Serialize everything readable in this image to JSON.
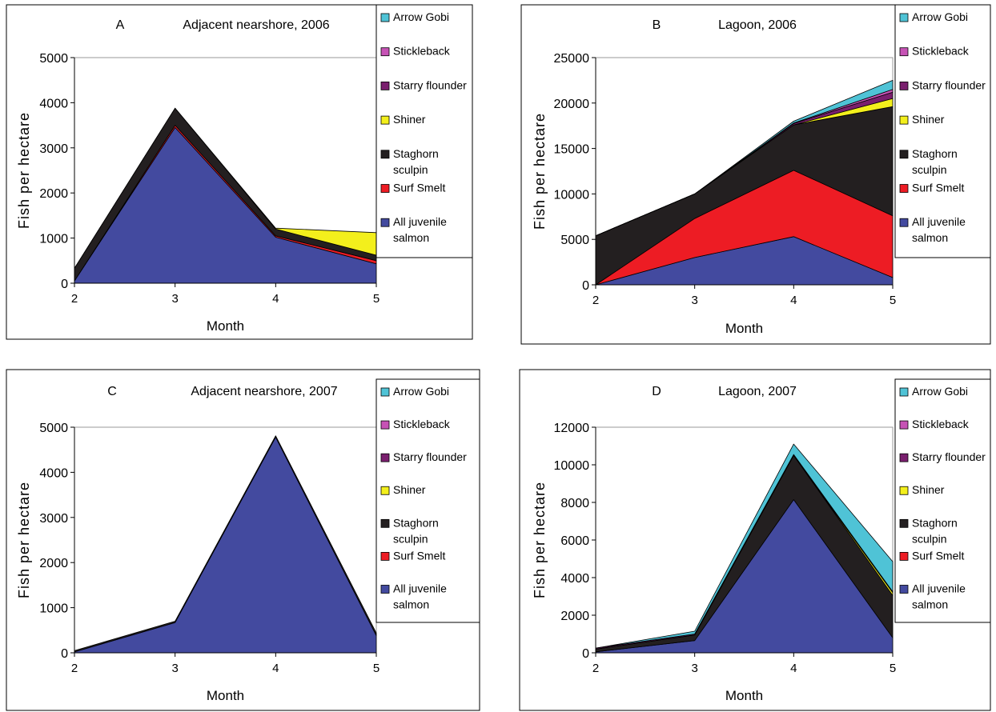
{
  "legend_items": [
    {
      "label_lines": [
        "Arrow Gobi"
      ],
      "color": "#4FC3D6"
    },
    {
      "label_lines": [
        "Stickleback"
      ],
      "color": "#C652B5"
    },
    {
      "label_lines": [
        "Starry flounder"
      ],
      "color": "#7A1F6E"
    },
    {
      "label_lines": [
        "Shiner"
      ],
      "color": "#F3EF1C"
    },
    {
      "label_lines": [
        "Staghorn",
        "sculpin"
      ],
      "color": "#231F20"
    },
    {
      "label_lines": [
        "Surf Smelt"
      ],
      "color": "#ED1C24"
    },
    {
      "label_lines": [
        "All juvenile",
        "salmon"
      ],
      "color": "#434A9F"
    }
  ],
  "chart_data": [
    {
      "type": "area",
      "stacked": true,
      "panel_letter": "A",
      "title": "Adjacent nearshore, 2006",
      "xlabel": "Month",
      "ylabel": "Fish per hectare",
      "x": [
        2,
        3,
        4,
        5
      ],
      "ylim": [
        0,
        5000
      ],
      "yticks": [
        0,
        1000,
        2000,
        3000,
        4000,
        5000
      ],
      "grid": false,
      "legend": "right",
      "series": [
        {
          "name": "All juvenile salmon",
          "values": [
            50,
            3450,
            1020,
            430
          ]
        },
        {
          "name": "Surf Smelt",
          "values": [
            0,
            50,
            30,
            70
          ]
        },
        {
          "name": "Staghorn sculpin",
          "values": [
            280,
            380,
            150,
            120
          ]
        },
        {
          "name": "Shiner",
          "values": [
            0,
            0,
            20,
            500
          ]
        },
        {
          "name": "Starry flounder",
          "values": [
            0,
            0,
            0,
            0
          ]
        },
        {
          "name": "Stickleback",
          "values": [
            0,
            0,
            0,
            0
          ]
        },
        {
          "name": "Arrow Gobi",
          "values": [
            0,
            0,
            0,
            0
          ]
        }
      ]
    },
    {
      "type": "area",
      "stacked": true,
      "panel_letter": "B",
      "title": "Lagoon, 2006",
      "xlabel": "Month",
      "ylabel": "Fish per hectare",
      "x": [
        2,
        3,
        4,
        5
      ],
      "ylim": [
        0,
        25000
      ],
      "yticks": [
        0,
        5000,
        10000,
        15000,
        20000,
        25000
      ],
      "grid": false,
      "legend": "right",
      "series": [
        {
          "name": "All juvenile salmon",
          "values": [
            0,
            3000,
            5300,
            800
          ]
        },
        {
          "name": "Surf Smelt",
          "values": [
            0,
            4300,
            7300,
            6800
          ]
        },
        {
          "name": "Staghorn sculpin",
          "values": [
            5400,
            2700,
            5000,
            12000
          ]
        },
        {
          "name": "Shiner",
          "values": [
            0,
            0,
            0,
            900
          ]
        },
        {
          "name": "Starry flounder",
          "values": [
            0,
            0,
            150,
            700
          ]
        },
        {
          "name": "Stickleback",
          "values": [
            0,
            0,
            50,
            300
          ]
        },
        {
          "name": "Arrow Gobi",
          "values": [
            0,
            0,
            200,
            1000
          ]
        }
      ]
    },
    {
      "type": "area",
      "stacked": true,
      "panel_letter": "C",
      "title": "Adjacent nearshore, 2007",
      "xlabel": "Month",
      "ylabel": "Fish per hectare",
      "x": [
        2,
        3,
        4,
        5
      ],
      "ylim": [
        0,
        5000
      ],
      "yticks": [
        0,
        1000,
        2000,
        3000,
        4000,
        5000
      ],
      "grid": false,
      "legend": "right",
      "series": [
        {
          "name": "All juvenile salmon",
          "values": [
            20,
            670,
            4780,
            380
          ]
        },
        {
          "name": "Surf Smelt",
          "values": [
            0,
            0,
            0,
            0
          ]
        },
        {
          "name": "Staghorn sculpin",
          "values": [
            30,
            30,
            30,
            60
          ]
        },
        {
          "name": "Shiner",
          "values": [
            0,
            0,
            0,
            0
          ]
        },
        {
          "name": "Starry flounder",
          "values": [
            0,
            0,
            0,
            0
          ]
        },
        {
          "name": "Stickleback",
          "values": [
            0,
            0,
            0,
            0
          ]
        },
        {
          "name": "Arrow Gobi",
          "values": [
            0,
            0,
            0,
            0
          ]
        }
      ]
    },
    {
      "type": "area",
      "stacked": true,
      "panel_letter": "D",
      "title": "Lagoon, 2007",
      "xlabel": "Month",
      "ylabel": "Fish per hectare",
      "x": [
        2,
        3,
        4,
        5
      ],
      "ylim": [
        0,
        12000
      ],
      "yticks": [
        0,
        2000,
        4000,
        6000,
        8000,
        10000,
        12000
      ],
      "grid": false,
      "legend": "right",
      "series": [
        {
          "name": "All juvenile salmon",
          "values": [
            50,
            650,
            8150,
            800
          ]
        },
        {
          "name": "Surf Smelt",
          "values": [
            0,
            0,
            0,
            0
          ]
        },
        {
          "name": "Staghorn sculpin",
          "values": [
            150,
            300,
            2350,
            2250
          ]
        },
        {
          "name": "Shiner",
          "values": [
            0,
            0,
            0,
            150
          ]
        },
        {
          "name": "Starry flounder",
          "values": [
            50,
            50,
            50,
            50
          ]
        },
        {
          "name": "Stickleback",
          "values": [
            0,
            0,
            0,
            0
          ]
        },
        {
          "name": "Arrow Gobi",
          "values": [
            0,
            150,
            550,
            1600
          ]
        }
      ]
    }
  ]
}
